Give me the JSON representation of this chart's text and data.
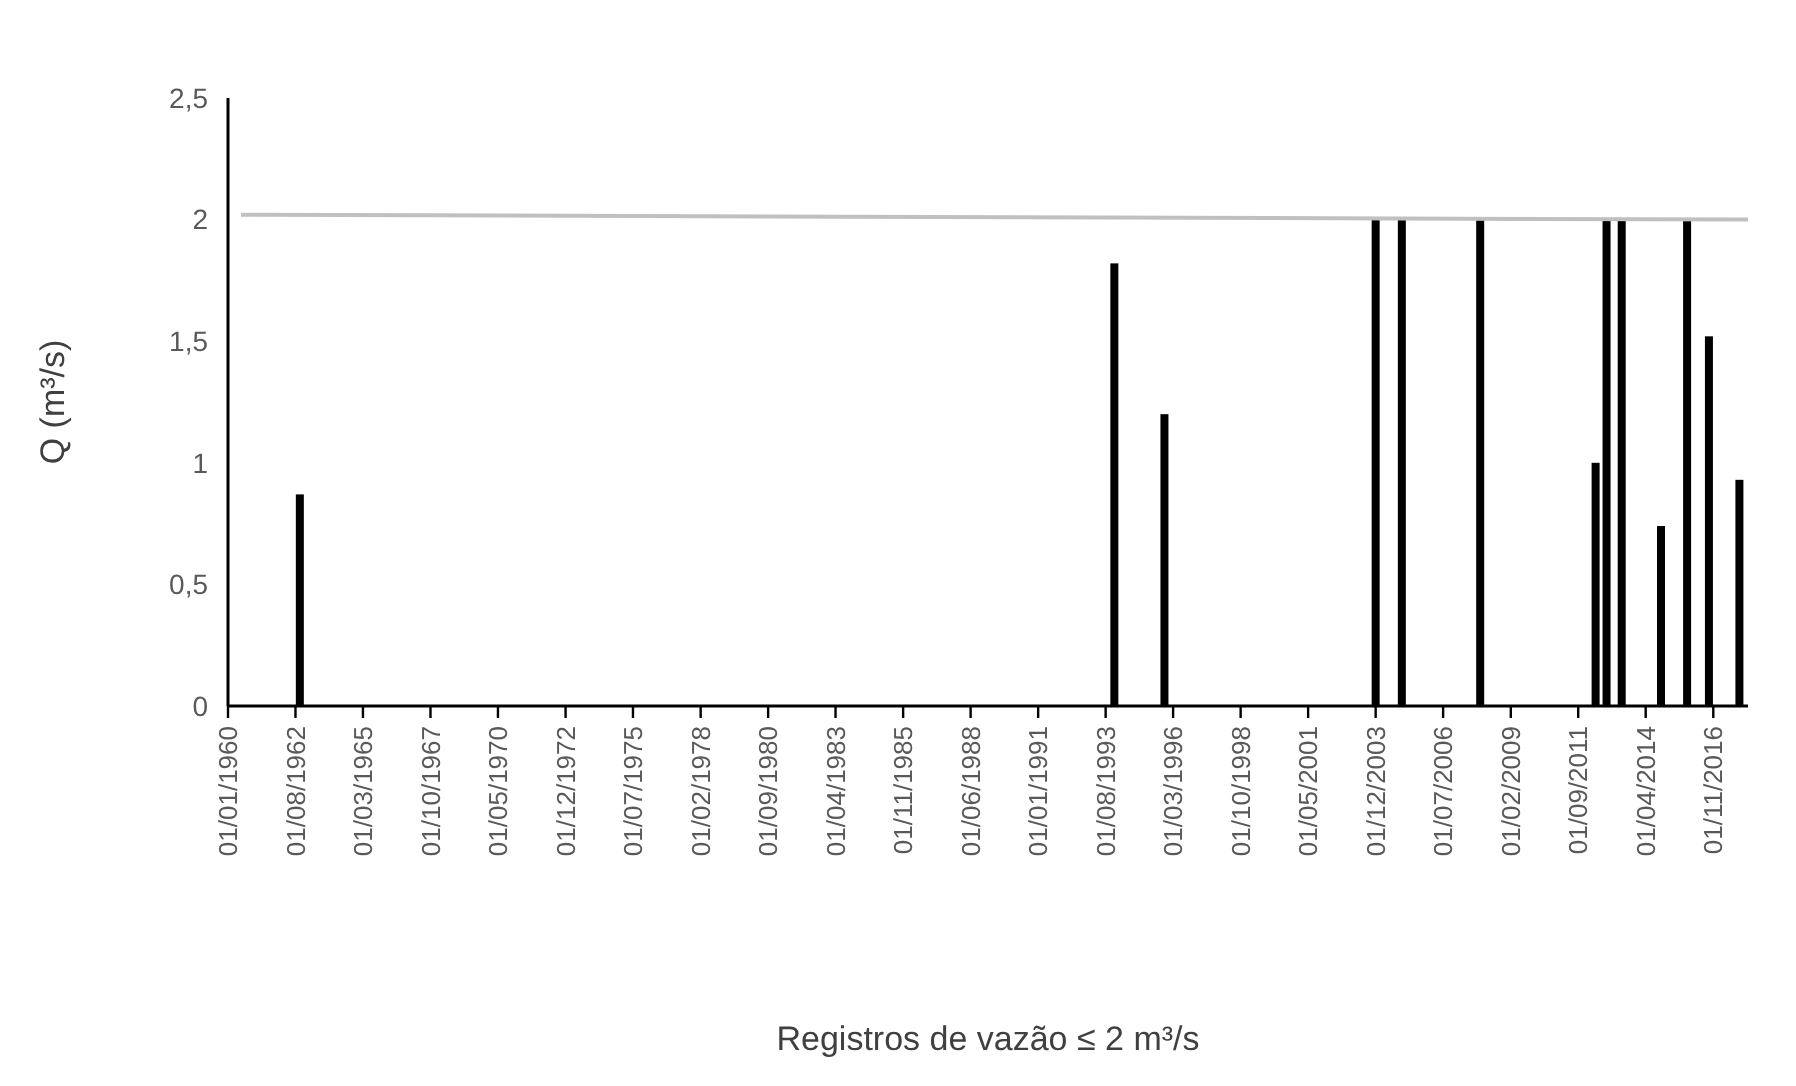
{
  "chart_data": {
    "type": "bar",
    "xlabel": "Registros de vazão ≤ 2 m³/s",
    "ylabel": "Q (m³/s)",
    "xlim": [
      "1960-01-01",
      "2018-03-01"
    ],
    "xticks": [
      {
        "value": "1960-01-01",
        "label": "01/01/1960"
      },
      {
        "value": "1962-08-01",
        "label": "01/08/1962"
      },
      {
        "value": "1965-03-01",
        "label": "01/03/1965"
      },
      {
        "value": "1967-10-01",
        "label": "01/10/1967"
      },
      {
        "value": "1970-05-01",
        "label": "01/05/1970"
      },
      {
        "value": "1972-12-01",
        "label": "01/12/1972"
      },
      {
        "value": "1975-07-01",
        "label": "01/07/1975"
      },
      {
        "value": "1978-02-01",
        "label": "01/02/1978"
      },
      {
        "value": "1980-09-01",
        "label": "01/09/1980"
      },
      {
        "value": "1983-04-01",
        "label": "01/04/1983"
      },
      {
        "value": "1985-11-01",
        "label": "01/11/1985"
      },
      {
        "value": "1988-06-01",
        "label": "01/06/1988"
      },
      {
        "value": "1991-01-01",
        "label": "01/01/1991"
      },
      {
        "value": "1993-08-01",
        "label": "01/08/1993"
      },
      {
        "value": "1996-03-01",
        "label": "01/03/1996"
      },
      {
        "value": "1998-10-01",
        "label": "01/10/1998"
      },
      {
        "value": "2001-05-01",
        "label": "01/05/2001"
      },
      {
        "value": "2003-12-01",
        "label": "01/12/2003"
      },
      {
        "value": "2006-07-01",
        "label": "01/07/2006"
      },
      {
        "value": "2009-02-01",
        "label": "01/02/2009"
      },
      {
        "value": "2011-09-01",
        "label": "01/09/2011"
      },
      {
        "value": "2014-04-01",
        "label": "01/04/2014"
      },
      {
        "value": "2016-11-01",
        "label": "01/11/2016"
      }
    ],
    "ylim": [
      0,
      2.5
    ],
    "yticks": [
      0,
      {
        "value": 0.5,
        "label": "0,5"
      },
      1,
      {
        "value": 1.5,
        "label": "1,5"
      },
      2,
      {
        "value": 2.5,
        "label": "2,5"
      }
    ],
    "grid": false,
    "series": [
      {
        "color": "#000000",
        "x": [
          "1962-10-01",
          "1993-12-01",
          "1995-11-01",
          "2003-12-01",
          "2004-12-01",
          "2007-12-01",
          "2012-05-01",
          "2012-10-01",
          "2013-05-01",
          "2014-11-01",
          "2015-11-01",
          "2016-09-01",
          "2017-11-01"
        ],
        "values": [
          0.87,
          1.82,
          1.2,
          2,
          2,
          2,
          1,
          2,
          2,
          0.74,
          2,
          1.52,
          0.93
        ]
      },
      {
        "type": "line",
        "color": "#c0c0c0",
        "x": [
          "1960-07-01",
          "2018-03-01"
        ],
        "values": [
          2.02,
          2
        ]
      }
    ]
  }
}
